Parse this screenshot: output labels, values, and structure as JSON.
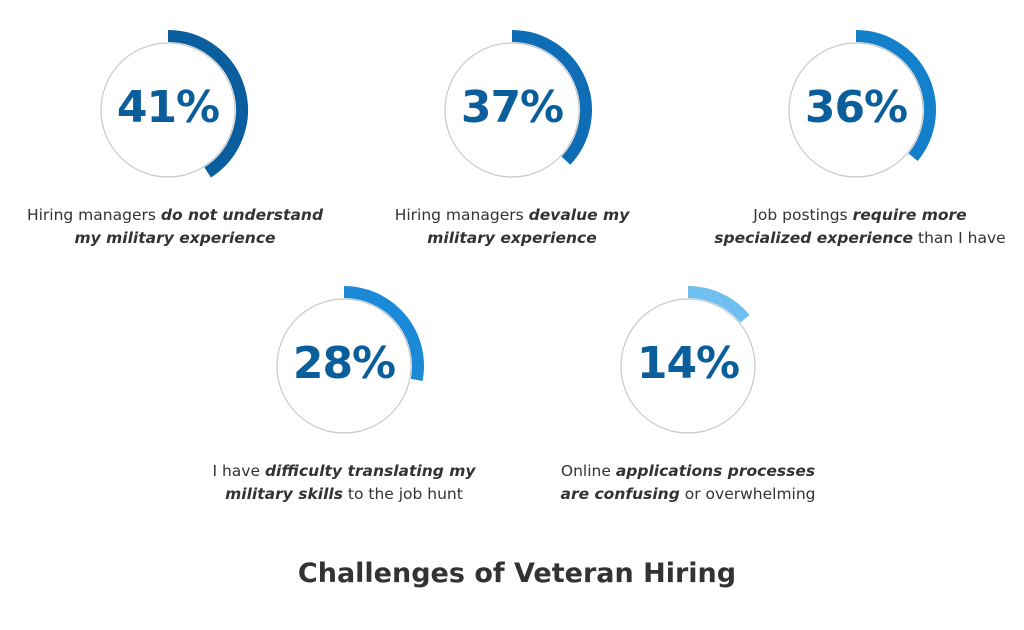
{
  "chart_data": {
    "type": "donut-progress",
    "title": "Challenges of Veteran Hiring",
    "max": 100,
    "items": [
      {
        "value": 41,
        "display": "41%",
        "color": "#0a5e9e",
        "label": [
          {
            "text": "Hiring managers ",
            "emph": false
          },
          {
            "text": "do not understand my military experience",
            "emph": true
          }
        ]
      },
      {
        "value": 37,
        "display": "37%",
        "color": "#0e6db5",
        "label": [
          {
            "text": "Hiring managers ",
            "emph": false
          },
          {
            "text": "devalue my military experience",
            "emph": true
          }
        ]
      },
      {
        "value": 36,
        "display": "36%",
        "color": "#1480cc",
        "label": [
          {
            "text": "Job postings ",
            "emph": false
          },
          {
            "text": "require more specialized experience",
            "emph": true
          },
          {
            "text": " than I have",
            "emph": false
          }
        ]
      },
      {
        "value": 28,
        "display": "28%",
        "color": "#1989d8",
        "label": [
          {
            "text": "I have ",
            "emph": false
          },
          {
            "text": "difficulty translating my military skills",
            "emph": true
          },
          {
            "text": " to the job hunt",
            "emph": false
          }
        ]
      },
      {
        "value": 14,
        "display": "14%",
        "color": "#6fbff0",
        "label": [
          {
            "text": "Online ",
            "emph": false
          },
          {
            "text": "applications processes are confusing",
            "emph": true
          },
          {
            "text": " or overwhelming",
            "emph": false
          }
        ]
      }
    ]
  }
}
